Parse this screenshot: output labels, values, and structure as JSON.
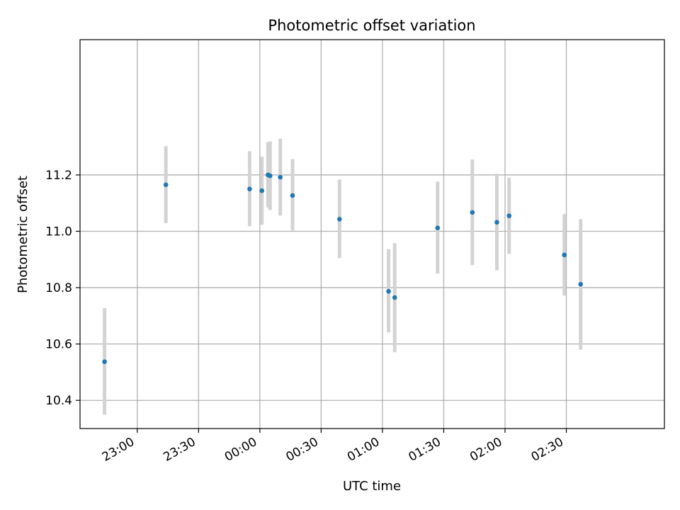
{
  "chart_data": {
    "type": "scatter",
    "title": "Photometric offset variation",
    "xlabel": "UTC time",
    "ylabel": "Photometric offset",
    "x_ticks": [
      "23:00",
      "23:30",
      "00:00",
      "00:30",
      "01:00",
      "01:30",
      "02:00",
      "02:30"
    ],
    "y_ticks": [
      "10.4",
      "10.6",
      "10.8",
      "11.0",
      "11.2"
    ],
    "xlim": [
      "22:32",
      "03:18"
    ],
    "ylim": [
      10.3,
      11.68
    ],
    "grid": true,
    "series": [
      {
        "marker_color": "#1f77b4",
        "errorbar_color": "#d3d3d3",
        "points": [
          {
            "x": "22:44",
            "y": 10.537,
            "ylow": 10.349,
            "yhigh": 10.727
          },
          {
            "x": "23:14",
            "y": 11.165,
            "ylow": 11.029,
            "yhigh": 11.302
          },
          {
            "x": "23:55",
            "y": 11.15,
            "ylow": 11.018,
            "yhigh": 11.284
          },
          {
            "x": "00:01",
            "y": 11.144,
            "ylow": 11.023,
            "yhigh": 11.265
          },
          {
            "x": "00:04",
            "y": 11.2,
            "ylow": 11.085,
            "yhigh": 11.316
          },
          {
            "x": "00:05",
            "y": 11.197,
            "ylow": 11.075,
            "yhigh": 11.319
          },
          {
            "x": "00:10",
            "y": 11.192,
            "ylow": 11.056,
            "yhigh": 11.329
          },
          {
            "x": "00:16",
            "y": 11.127,
            "ylow": 11.003,
            "yhigh": 11.256
          },
          {
            "x": "00:39",
            "y": 11.043,
            "ylow": 10.905,
            "yhigh": 11.184
          },
          {
            "x": "01:03",
            "y": 10.787,
            "ylow": 10.641,
            "yhigh": 10.937
          },
          {
            "x": "01:06",
            "y": 10.765,
            "ylow": 10.571,
            "yhigh": 10.958
          },
          {
            "x": "01:27",
            "y": 11.012,
            "ylow": 10.85,
            "yhigh": 11.176
          },
          {
            "x": "01:44",
            "y": 11.067,
            "ylow": 10.88,
            "yhigh": 11.255
          },
          {
            "x": "01:56",
            "y": 11.032,
            "ylow": 10.862,
            "yhigh": 11.204
          },
          {
            "x": "02:02",
            "y": 11.055,
            "ylow": 10.92,
            "yhigh": 11.19
          },
          {
            "x": "02:29",
            "y": 10.916,
            "ylow": 10.772,
            "yhigh": 11.061
          },
          {
            "x": "02:37",
            "y": 10.812,
            "ylow": 10.58,
            "yhigh": 11.043
          }
        ]
      }
    ]
  }
}
